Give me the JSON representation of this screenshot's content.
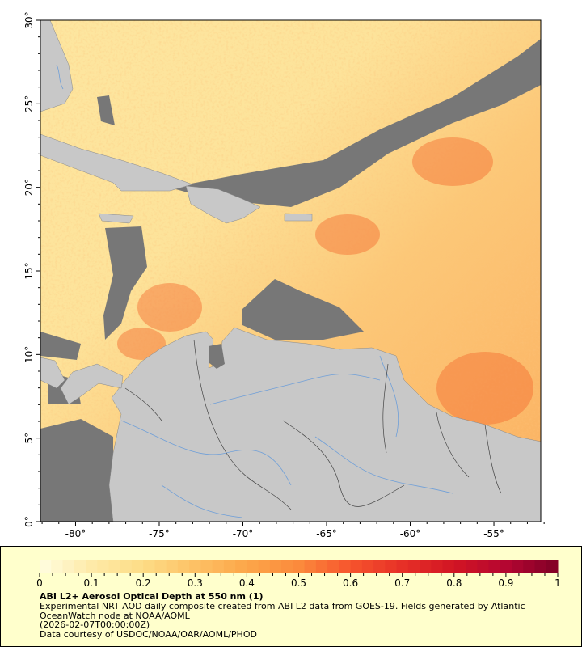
{
  "map": {
    "lon_ticks": [
      "-80°",
      "-75°",
      "-70°",
      "-65°",
      "-60°",
      "-55°"
    ],
    "lat_ticks": [
      "0°",
      "5°",
      "10°",
      "15°",
      "20°",
      "25°",
      "30°"
    ],
    "lon_range": [
      -82.1,
      -52.2
    ],
    "lat_range": [
      0,
      30
    ],
    "colors": {
      "land": "#c8c8c8",
      "no_data": "#777777",
      "rivers": "#6f9fd8",
      "borders": "#444444"
    }
  },
  "legend": {
    "colorbar": {
      "range": [
        0,
        1
      ],
      "tick_labels": [
        "0",
        "0.1",
        "0.2",
        "0.3",
        "0.4",
        "0.5",
        "0.6",
        "0.7",
        "0.8",
        "0.9",
        "1"
      ],
      "colors": [
        "#fffde0",
        "#feeaa8",
        "#fddc86",
        "#fdc165",
        "#fca649",
        "#fb8a3c",
        "#f6542d",
        "#e63027",
        "#d21524",
        "#b40631",
        "#800026"
      ]
    },
    "title": "ABI L2+ Aerosol Optical Depth at 550 nm (1)",
    "line1": "Experimental NRT AOD daily composite created from ABI L2 data from GOES-19. Fields generated by Atlantic",
    "line2": "OceanWatch node at NOAA/AOML",
    "line3": "(2026-02-07T00:00:00Z)",
    "line4": "Data courtesy of USDOC/NOAA/OAR/AOML/PHOD"
  }
}
